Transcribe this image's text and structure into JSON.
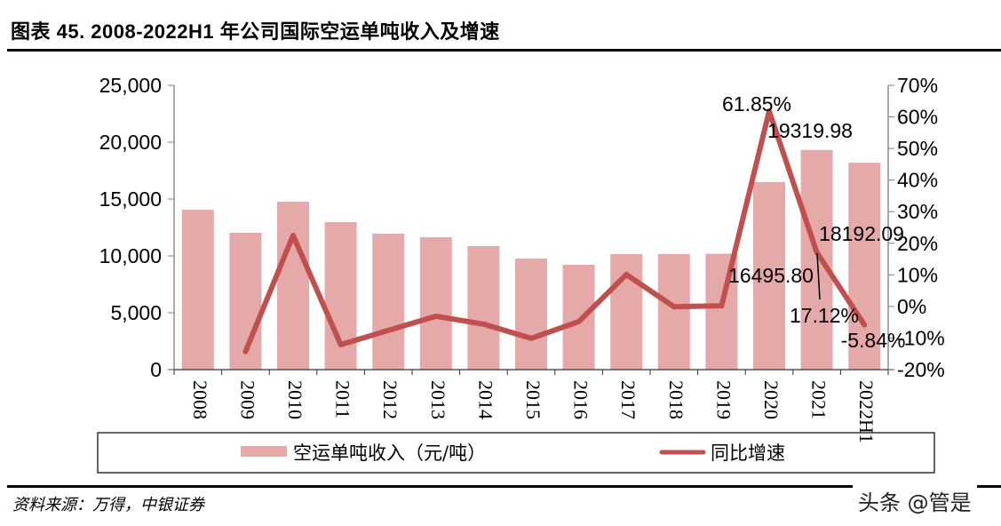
{
  "header": {
    "title": "图表 45. 2008-2022H1 年公司国际空运单吨收入及增速"
  },
  "footer": {
    "source": "资料来源：万得，中银证券",
    "watermark": "头条 @管是"
  },
  "colors": {
    "bar": "#e6a9a9",
    "line": "#c0504d",
    "axis": "#808080"
  },
  "legend": {
    "bar_label": "空运单吨收入（元/吨）",
    "line_label": "同比增速"
  },
  "chart_data": {
    "type": "bar+line",
    "title": "2008-2022H1 年公司国际空运单吨收入及增速",
    "categories": [
      "2008",
      "2009",
      "2010",
      "2011",
      "2012",
      "2013",
      "2014",
      "2015",
      "2016",
      "2017",
      "2018",
      "2019",
      "2020",
      "2021",
      "2022H1"
    ],
    "series": [
      {
        "name": "空运单吨收入（元/吨）",
        "type": "bar",
        "axis": "left",
        "values": [
          14060,
          12030,
          14770,
          12970,
          11950,
          11640,
          10860,
          9770,
          9220,
          10160,
          10160,
          10190,
          16495.8,
          19319.98,
          18192.09
        ]
      },
      {
        "name": "同比增速",
        "type": "line",
        "axis": "right",
        "unit": "%",
        "values": [
          null,
          -14.3,
          22.5,
          -12.1,
          -7.6,
          -3.1,
          -5.6,
          -10.1,
          -4.8,
          10.1,
          -0.1,
          0.2,
          61.85,
          17.12,
          -5.84
        ]
      }
    ],
    "left_axis": {
      "ylim": [
        0,
        25000
      ],
      "ticks": [
        "0",
        "5,000",
        "10,000",
        "15,000",
        "20,000",
        "25,000"
      ]
    },
    "right_axis": {
      "ylim": [
        -20,
        70
      ],
      "ticks": [
        "-20%",
        "-10%",
        "0%",
        "10%",
        "20%",
        "30%",
        "40%",
        "50%",
        "60%",
        "70%"
      ]
    },
    "annotations": [
      {
        "text": "61.85%",
        "category": "2020",
        "series": "同比增速"
      },
      {
        "text": "16495.80",
        "category": "2020",
        "series": "空运单吨收入（元/吨）"
      },
      {
        "text": "19319.98",
        "category": "2021",
        "series": "空运单吨收入（元/吨）"
      },
      {
        "text": "17.12%",
        "category": "2021",
        "series": "同比增速"
      },
      {
        "text": "18192.09",
        "category": "2022H1",
        "series": "空运单吨收入（元/吨）"
      },
      {
        "text": "-5.84%",
        "category": "2022H1",
        "series": "同比增速"
      }
    ],
    "xlabel": "",
    "ylabel": "",
    "grid": false,
    "legend_position": "bottom"
  }
}
